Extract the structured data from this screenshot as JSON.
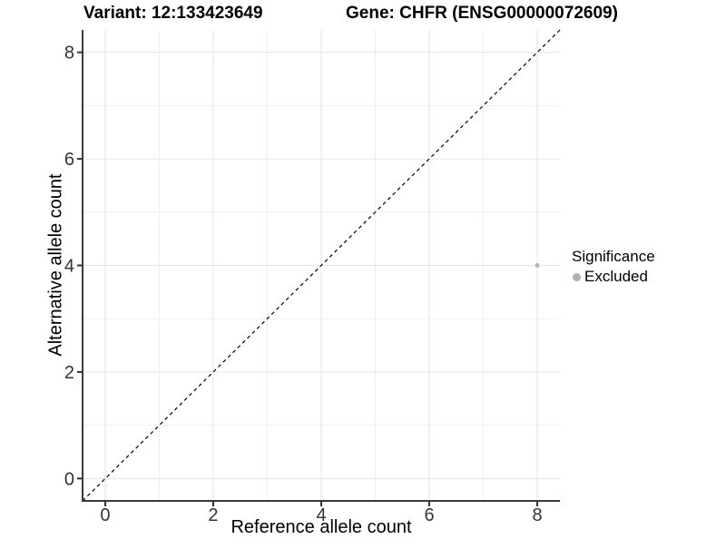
{
  "chart_data": {
    "type": "scatter",
    "titles": [
      "Variant: 12:133423649",
      "Gene: CHFR (ENSG00000072609)"
    ],
    "xlabel": "Reference allele count",
    "ylabel": "Alternative allele count",
    "xlim": [
      -0.42,
      8.42
    ],
    "ylim": [
      -0.42,
      8.42
    ],
    "x_major_ticks": [
      0,
      2,
      4,
      6,
      8
    ],
    "y_major_ticks": [
      0,
      2,
      4,
      6,
      8
    ],
    "x_minor_ticks": [
      1,
      3,
      5,
      7
    ],
    "y_minor_ticks": [
      1,
      3,
      5,
      7
    ],
    "grid": "major+minor",
    "legend_position": "right",
    "series": [
      {
        "name": "Excluded",
        "color": "#b3b3b3",
        "point_radius": 2.5,
        "points": [
          {
            "x": 8,
            "y": 4
          }
        ]
      }
    ],
    "reference_line": {
      "kind": "identity y=x",
      "style": "dashed",
      "color": "#000000"
    }
  },
  "legend": {
    "title": "Significance"
  },
  "style": {
    "background": "#ffffff",
    "grid_major_color": "#e3e3e3",
    "grid_minor_color": "#f0f0f0",
    "axis_color": "#3a3a3a",
    "tick_color": "#333333",
    "tick_label_color": "#333333",
    "text_color": "#000000",
    "legend_marker_color": "#b0b0b0"
  }
}
